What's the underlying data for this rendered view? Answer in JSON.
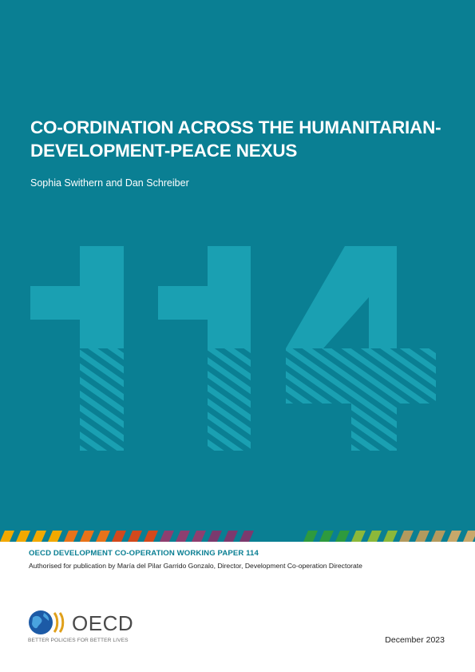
{
  "cover": {
    "title_line1": "CO-ORDINATION ACROSS THE HUMANITARIAN-",
    "title_line2": "DEVELOPMENT-PEACE NEXUS",
    "authors": "Sophia Swithern and Dan Schreiber",
    "background_color": "#0a7f93",
    "number_graphic": "114"
  },
  "series": {
    "name": "OECD DEVELOPMENT CO-OPERATION WORKING PAPER 114",
    "authorised": "Authorised for publication by María del Pilar Garrido Gonzalo, Director, Development Co-operation Directorate"
  },
  "logo": {
    "name": "OECD",
    "tagline": "BETTER POLICIES FOR BETTER LIVES",
    "icon": "oecd-globe-logo-icon"
  },
  "date": "December 2023",
  "stripe_colors": [
    "#f2a900",
    "#e8731a",
    "#d2491c",
    "#8e3f70",
    "#7b3a6e",
    "#0a7f93",
    "#2e9a3e",
    "#8cb83a",
    "#b39a5e",
    "#c8a86a"
  ]
}
